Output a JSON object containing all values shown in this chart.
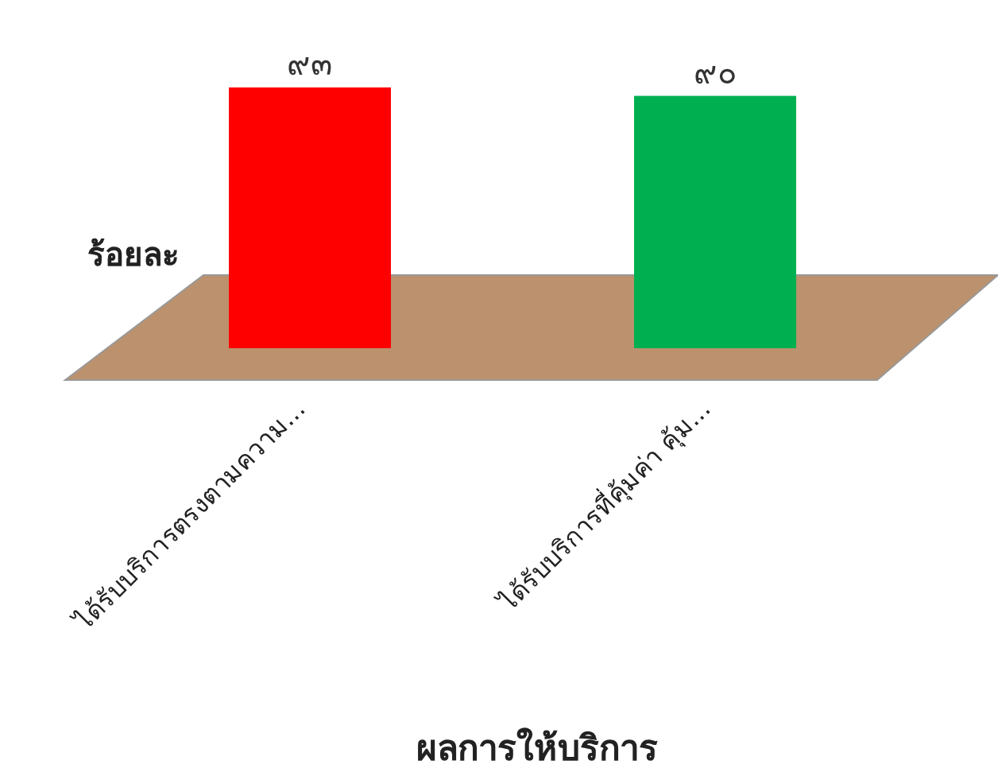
{
  "chart_data": {
    "type": "bar",
    "xlabel": "ผลการให้บริการ",
    "ylabel": "ร้อยละ",
    "categories": [
      "ได้รับบริการตรงตามความ...",
      "ได้รับบริการที่คุ้มค่า คุ้ม..."
    ],
    "values": [
      93,
      90
    ],
    "colors": [
      "#ff0000",
      "#00b050"
    ],
    "value_labels": [
      "๙๓",
      "๙๐"
    ]
  }
}
